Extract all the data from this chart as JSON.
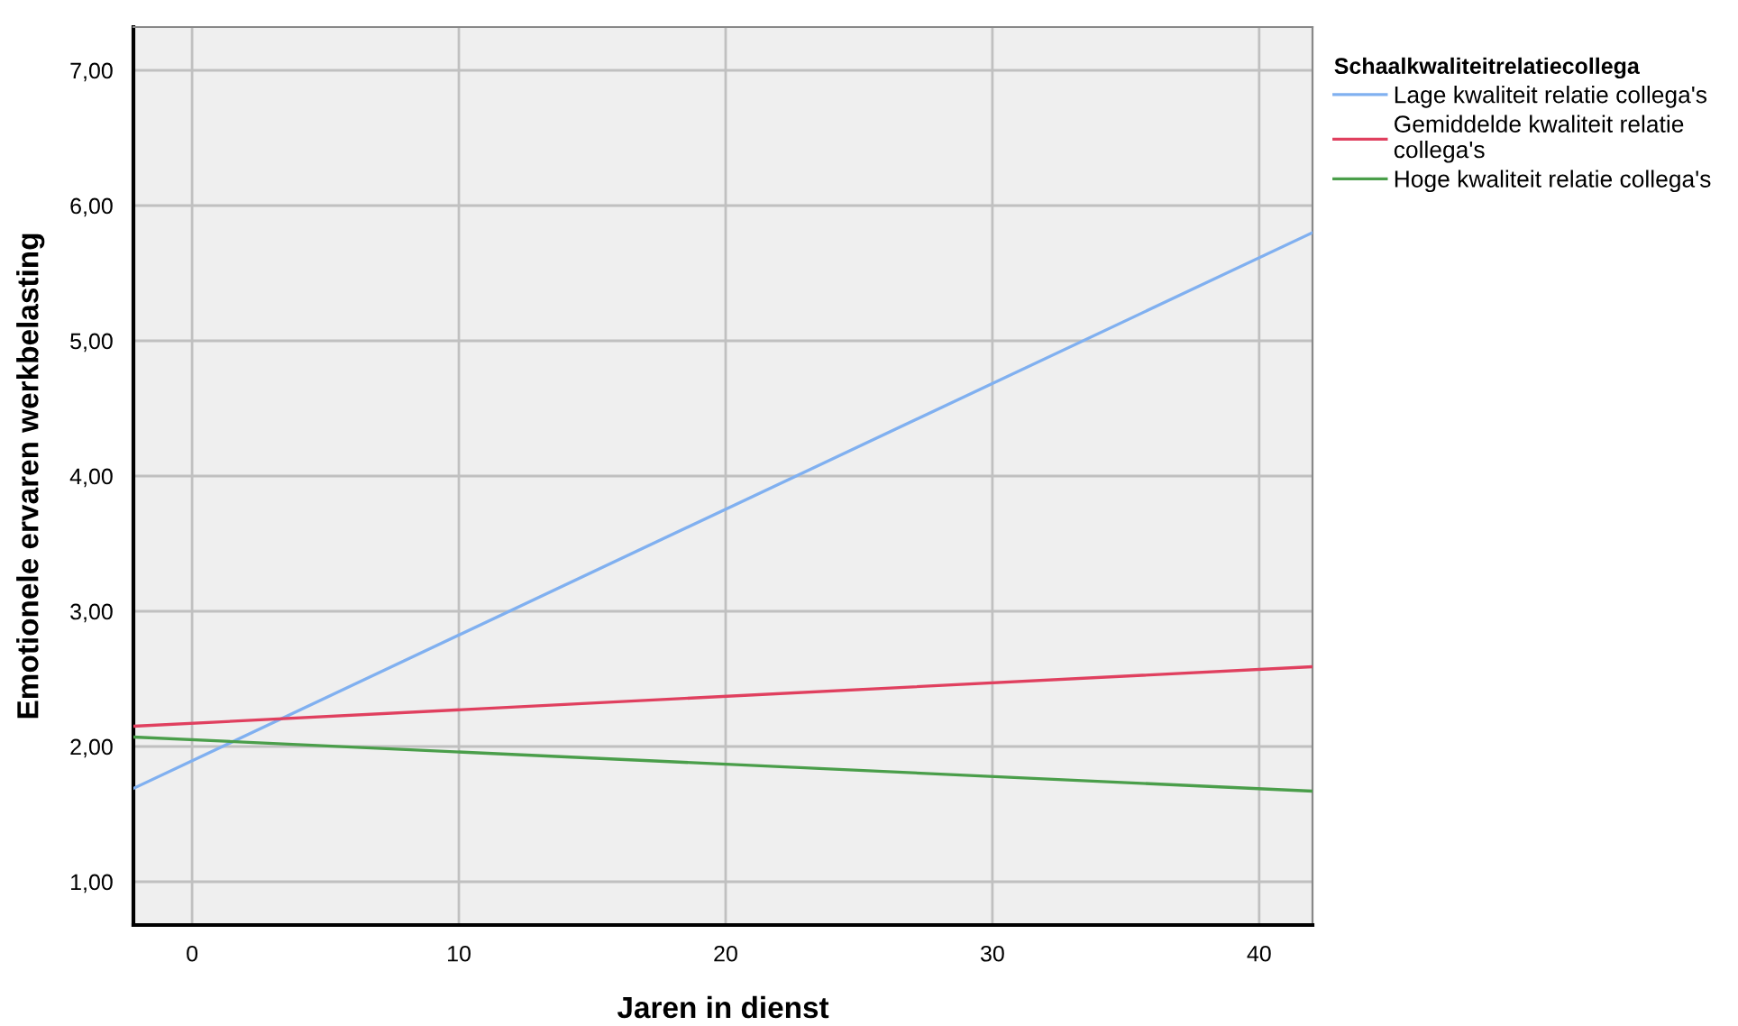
{
  "chart_data": {
    "type": "line",
    "xlabel": "Jaren in dienst",
    "ylabel": "Emotionele ervaren werkbelasting",
    "legend_title": "Schaalkwaliteitrelatiecollega",
    "x": [
      -2.2,
      42
    ],
    "series": [
      {
        "name": "Lage kwaliteit relatie collega's",
        "color": "#80b0f0",
        "values": [
          1.69,
          5.8
        ]
      },
      {
        "name": "Gemiddelde kwaliteit relatie\ncollega's",
        "color": "#e0405f",
        "values": [
          2.15,
          2.59
        ]
      },
      {
        "name": "Hoge kwaliteit relatie collega's",
        "color": "#4a9e4a",
        "values": [
          2.07,
          1.67
        ]
      }
    ],
    "xlim": [
      -2.2,
      42
    ],
    "xticks": [
      0,
      10,
      20,
      30,
      40
    ],
    "ylim": [
      0.68,
      7.32
    ],
    "yticks": [
      {
        "value": 1,
        "label": "1,00"
      },
      {
        "value": 2,
        "label": "2,00"
      },
      {
        "value": 3,
        "label": "3,00"
      },
      {
        "value": 4,
        "label": "4,00"
      },
      {
        "value": 5,
        "label": "5,00"
      },
      {
        "value": 6,
        "label": "6,00"
      },
      {
        "value": 7,
        "label": "7,00"
      }
    ],
    "grid": true,
    "legend": "top right",
    "marker": "none",
    "line_style": "solid"
  }
}
